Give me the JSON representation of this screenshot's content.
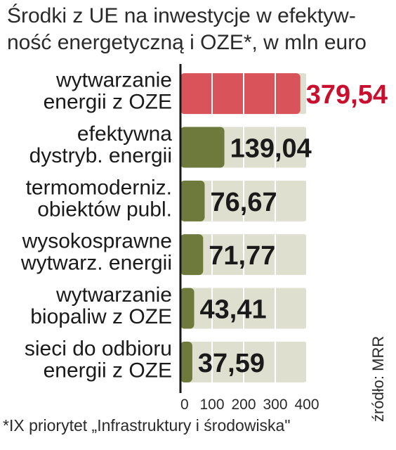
{
  "title_lines": [
    "Środki z UE na inwestycje w efektyw-",
    "ność energetyczną i OZE*, w mln euro"
  ],
  "footnote": "*IX priorytet „Infrastruktury i środowiska\"",
  "source": "źródło: MRR",
  "colors": {
    "highlight_bar": "#d9545a",
    "highlight_value": "#c8102e",
    "olive_bar": "#6e7a3c",
    "value_text": "#1a1a1a",
    "background_band": "#dedfcf"
  },
  "chart_data": {
    "type": "bar",
    "orientation": "horizontal",
    "categories": [
      [
        "wytwarzanie",
        "energii z OZE"
      ],
      [
        "efektywna",
        "dystryb. energii"
      ],
      [
        "termomoderniz.",
        "obiektów publ."
      ],
      [
        "wysokosprawne",
        "wytwarz. energii"
      ],
      [
        "wytwarzanie",
        "biopaliw z OZE"
      ],
      [
        "sieci do odbioru",
        "energii z OZE"
      ]
    ],
    "values": [
      379.54,
      139.04,
      76.67,
      71.77,
      43.41,
      37.59
    ],
    "value_labels": [
      "379,54",
      "139,04",
      "76,67",
      "71,77",
      "43,41",
      "37,59"
    ],
    "highlight_index": 0,
    "xlim": [
      0,
      400
    ],
    "xticks": [
      0,
      100,
      200,
      300,
      400
    ],
    "xtick_labels": [
      "0",
      "100",
      "200",
      "300",
      "400"
    ],
    "grid": true
  }
}
